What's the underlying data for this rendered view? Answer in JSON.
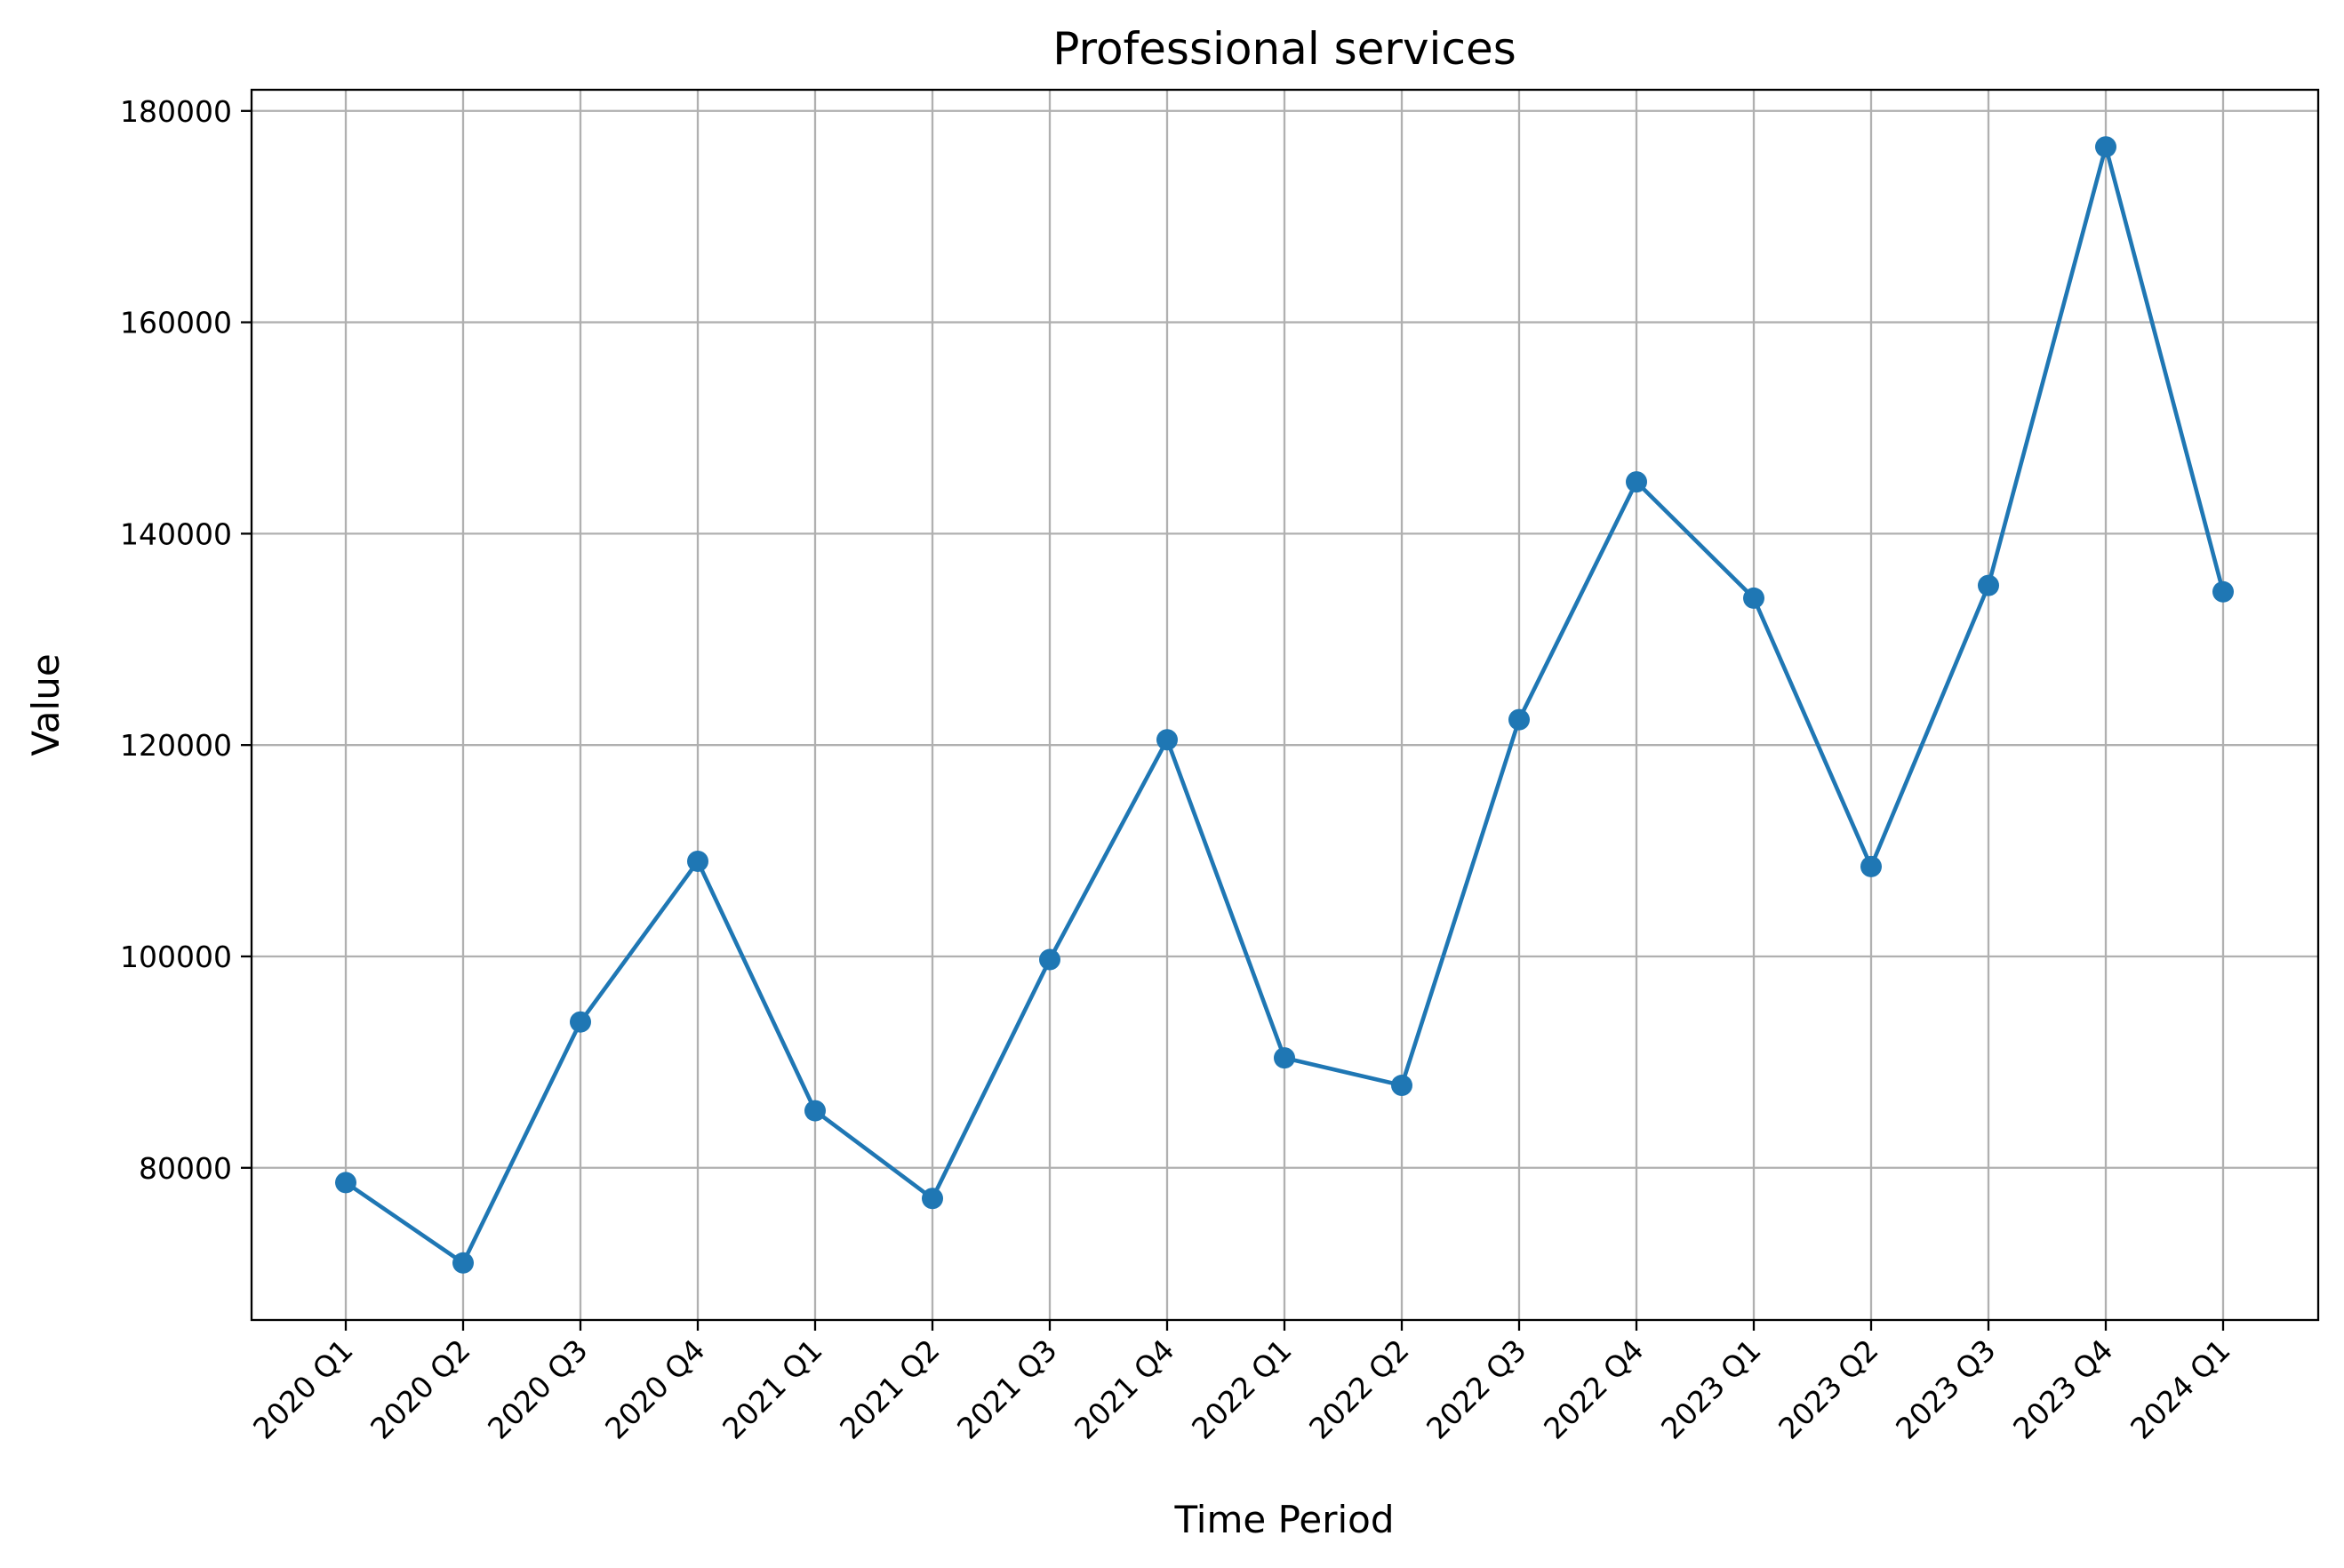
{
  "chart_data": {
    "type": "line",
    "title": "Professional services",
    "xlabel": "Time Period",
    "ylabel": "Value",
    "categories": [
      "2020 Q1",
      "2020 Q2",
      "2020 Q3",
      "2020 Q4",
      "2021 Q1",
      "2021 Q2",
      "2021 Q3",
      "2021 Q4",
      "2022 Q1",
      "2022 Q2",
      "2022 Q3",
      "2022 Q4",
      "2023 Q1",
      "2023 Q2",
      "2023 Q3",
      "2023 Q4",
      "2024 Q1"
    ],
    "series": [
      {
        "values": [
          78600,
          71000,
          93800,
          109000,
          85400,
          77100,
          99700,
          120500,
          90400,
          87800,
          122400,
          144900,
          133900,
          108500,
          135100,
          176600,
          134500
        ],
        "color": "#1f77b4",
        "marker": "circle"
      }
    ],
    "ylim": [
      65600,
      182000
    ],
    "yticks": [
      80000,
      100000,
      120000,
      140000,
      160000,
      180000
    ],
    "grid": true,
    "legend": "none"
  }
}
